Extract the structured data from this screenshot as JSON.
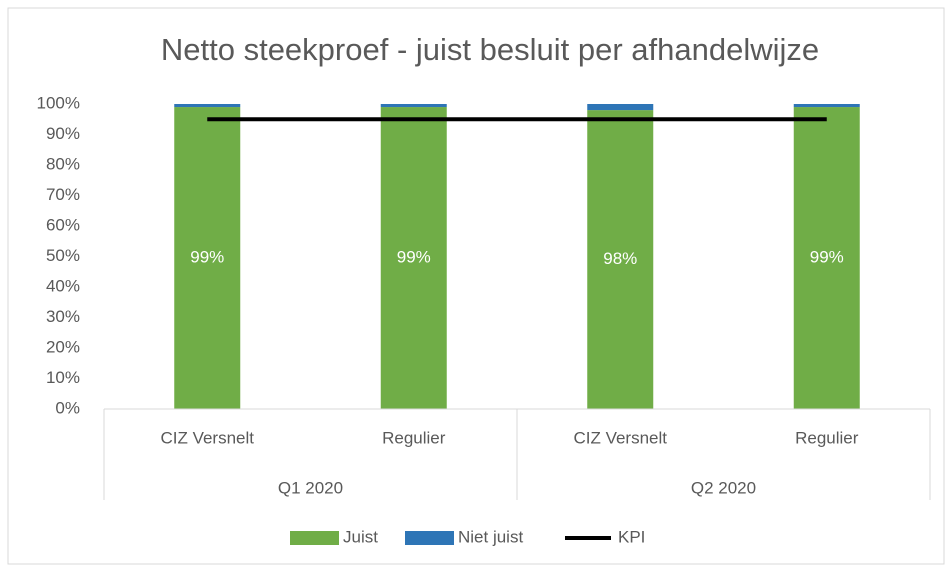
{
  "chart_data": {
    "type": "stacked-bar",
    "title": "Netto steekproef - juist besluit per afhandelwijze",
    "categories": [
      "CIZ Versnelt",
      "Regulier",
      "CIZ Versnelt",
      "Regulier"
    ],
    "groups": [
      "Q1 2020",
      "Q2 2020"
    ],
    "series": [
      {
        "name": "Juist",
        "type": "bar",
        "color": "#70ad47",
        "values": [
          99,
          99,
          98,
          99
        ],
        "value_labels": [
          "99%",
          "99%",
          "98%",
          "99%"
        ]
      },
      {
        "name": "Niet juist",
        "type": "bar",
        "color": "#2e75b6",
        "values": [
          1,
          1,
          2,
          1
        ]
      },
      {
        "name": "KPI",
        "type": "line",
        "color": "#000000",
        "values": [
          95,
          95,
          95,
          95
        ]
      }
    ],
    "ylim": [
      0,
      100
    ],
    "yticks": [
      {
        "value": 0,
        "label": "0%"
      },
      {
        "value": 10,
        "label": "10%"
      },
      {
        "value": 20,
        "label": "20%"
      },
      {
        "value": 30,
        "label": "30%"
      },
      {
        "value": 40,
        "label": "40%"
      },
      {
        "value": 50,
        "label": "50%"
      },
      {
        "value": 60,
        "label": "60%"
      },
      {
        "value": 70,
        "label": "70%"
      },
      {
        "value": 80,
        "label": "80%"
      },
      {
        "value": 90,
        "label": "90%"
      },
      {
        "value": 100,
        "label": "100%"
      }
    ],
    "grid": false,
    "legend": "bottom"
  }
}
